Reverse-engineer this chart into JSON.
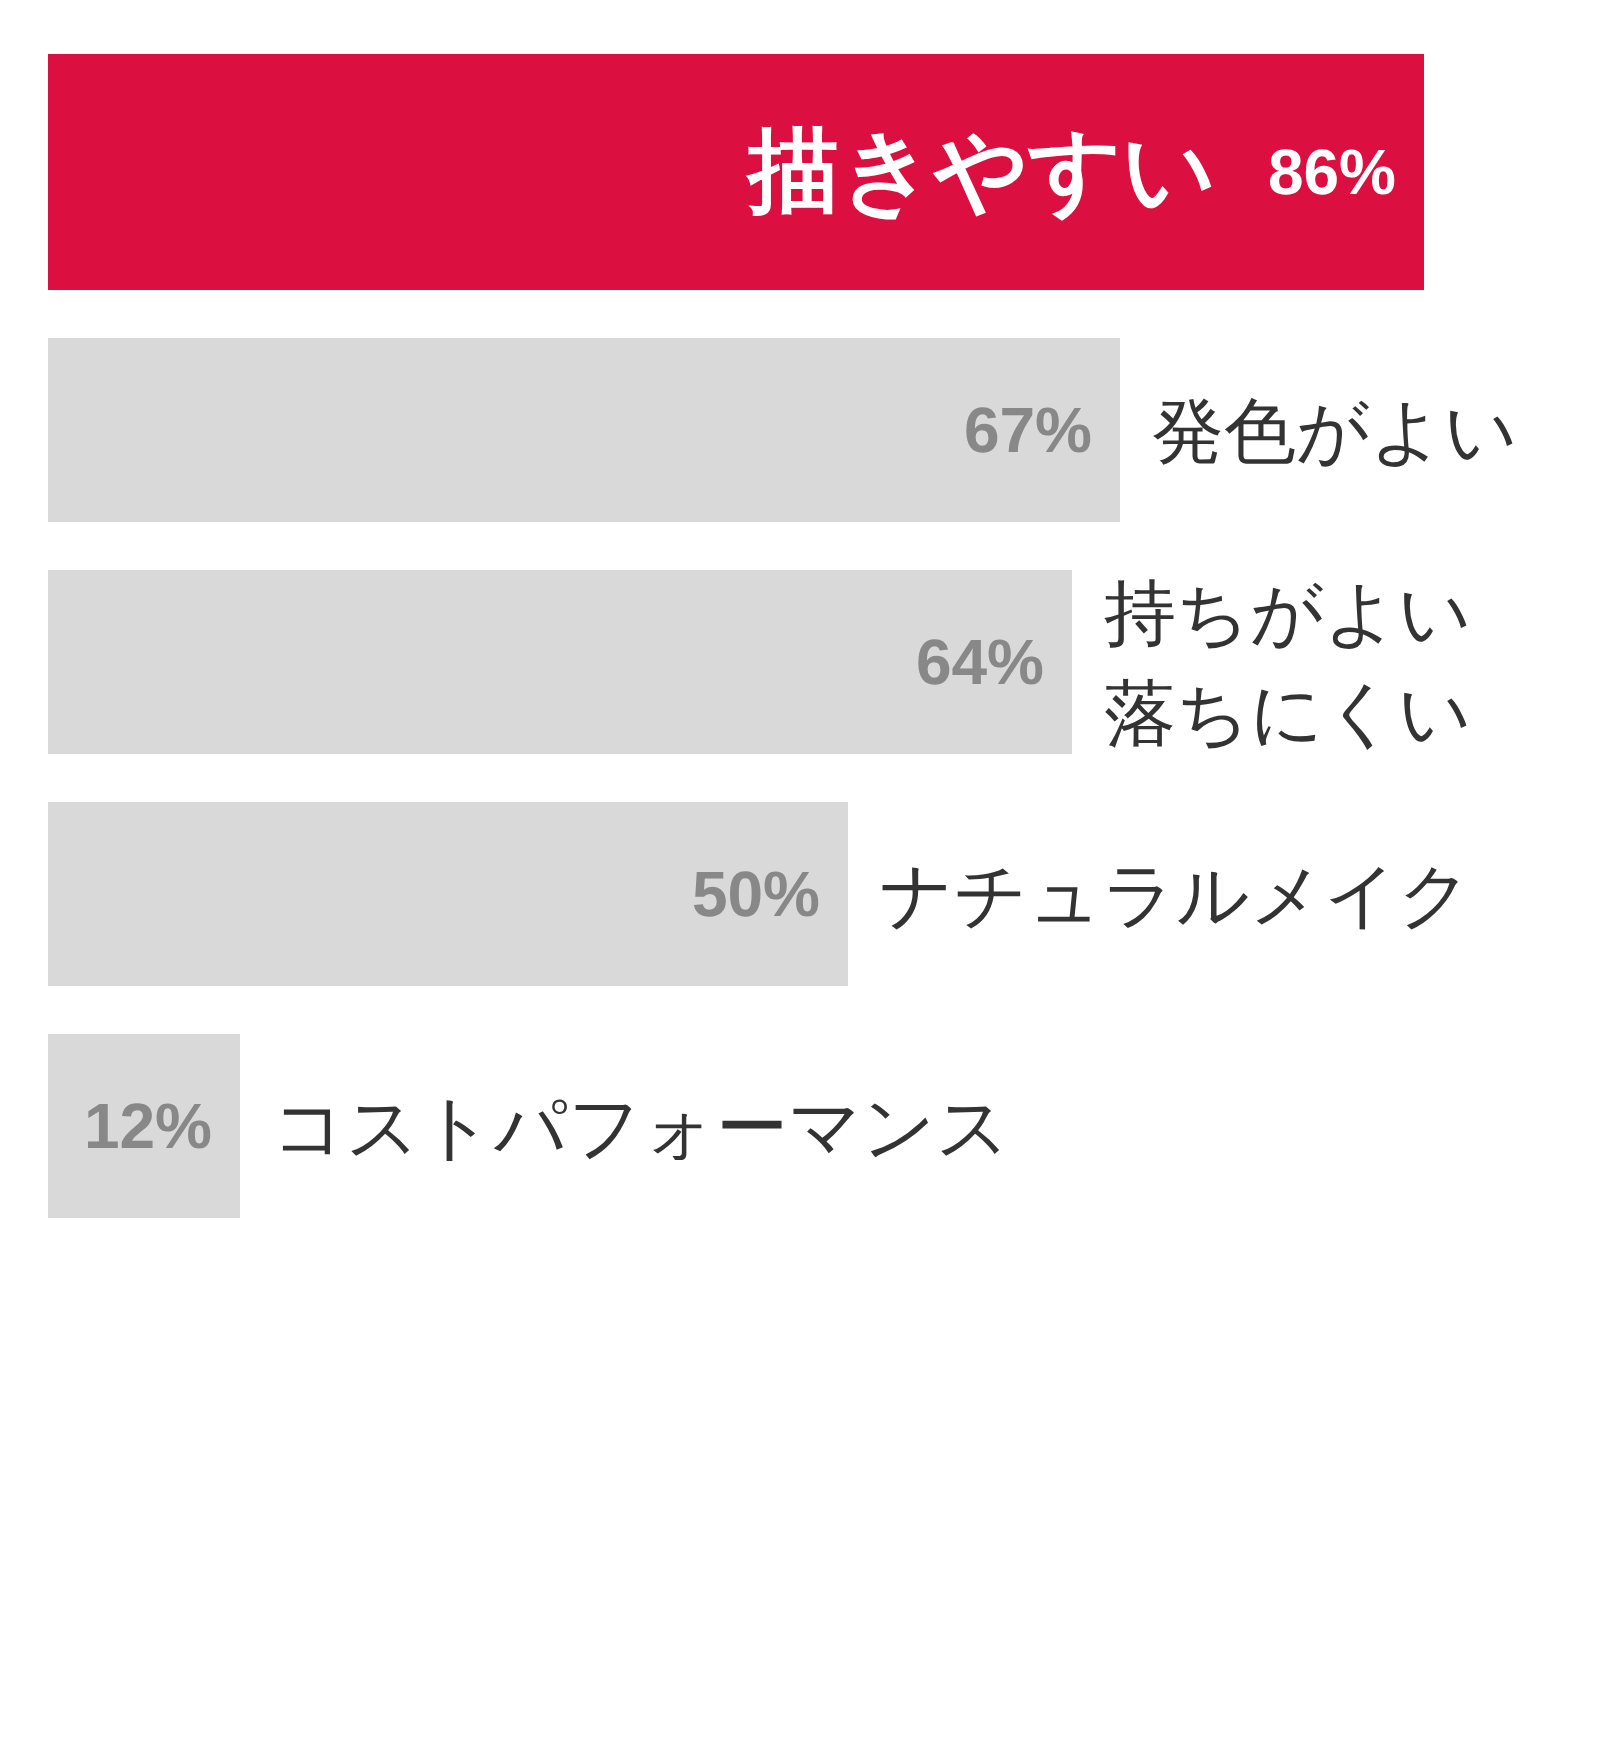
{
  "chart_data": {
    "type": "bar",
    "orientation": "horizontal",
    "categories": [
      "描きやすい",
      "発色がよい",
      "持ちがよい落ちにくい",
      "ナチュラルメイク",
      "コストパフォーマンス"
    ],
    "values": [
      86,
      67,
      64,
      50,
      12
    ],
    "value_labels": [
      "86%",
      "67%",
      "64%",
      "50%",
      "12%"
    ],
    "colors": [
      "#dc0f41",
      "#d9d9d9",
      "#d9d9d9",
      "#d9d9d9",
      "#d9d9d9"
    ]
  }
}
